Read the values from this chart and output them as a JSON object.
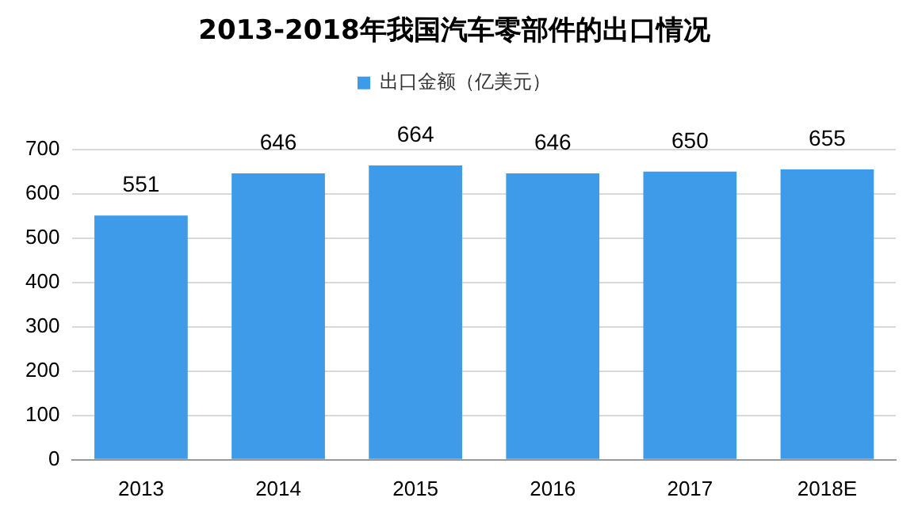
{
  "chart_data": {
    "type": "bar",
    "title": "2013-2018年我国汽车零部件的出口情况",
    "categories": [
      "2013",
      "2014",
      "2015",
      "2016",
      "2017",
      "2018E"
    ],
    "series": [
      {
        "name": "出口金额（亿美元）",
        "color": "#3d9be9",
        "values": [
          551,
          646,
          664,
          646,
          650,
          655
        ]
      }
    ],
    "ylim": [
      0,
      700
    ],
    "yticks": [
      0,
      100,
      200,
      300,
      400,
      500,
      600,
      700
    ],
    "grid": "y",
    "legend": "top",
    "data_labels": true
  }
}
